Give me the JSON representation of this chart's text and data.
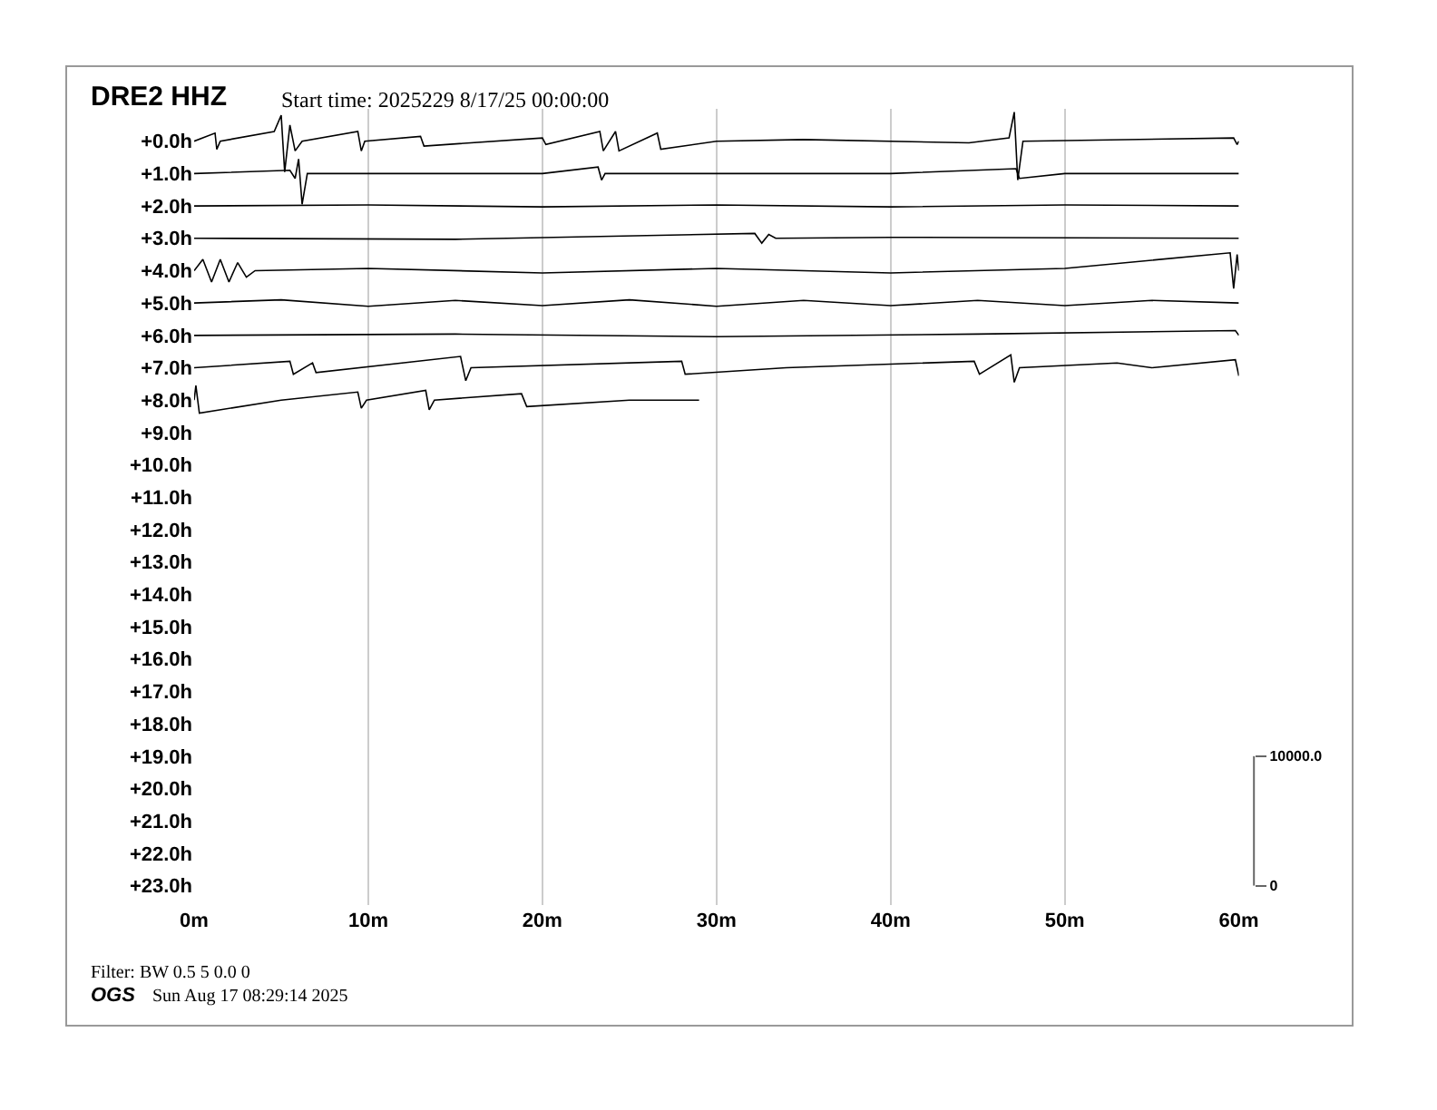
{
  "chart_data": {
    "type": "line",
    "title": "DRE2 HHZ",
    "subtitle": "Start time: 2025229  8/17/25 00:00:00",
    "annotations": [
      "Filter: BW 0.5 5 0.0 0",
      "OGS",
      "Sun Aug 17 08:29:14 2025"
    ],
    "xlim": [
      0,
      60
    ],
    "xticks": [
      {
        "value": 0,
        "label": "0m"
      },
      {
        "value": 10,
        "label": "10m"
      },
      {
        "value": 20,
        "label": "20m"
      },
      {
        "value": 30,
        "label": "30m"
      },
      {
        "value": 40,
        "label": "40m"
      },
      {
        "value": 50,
        "label": "50m"
      },
      {
        "value": 60,
        "label": "60m"
      }
    ],
    "ylim": [
      23.6,
      -1.0
    ],
    "yticks": [
      {
        "value": 0,
        "label": "+0.0h"
      },
      {
        "value": 1,
        "label": "+1.0h"
      },
      {
        "value": 2,
        "label": "+2.0h"
      },
      {
        "value": 3,
        "label": "+3.0h"
      },
      {
        "value": 4,
        "label": "+4.0h"
      },
      {
        "value": 5,
        "label": "+5.0h"
      },
      {
        "value": 6,
        "label": "+6.0h"
      },
      {
        "value": 7,
        "label": "+7.0h"
      },
      {
        "value": 8,
        "label": "+8.0h"
      },
      {
        "value": 9,
        "label": "+9.0h"
      },
      {
        "value": 10,
        "label": "+10.0h"
      },
      {
        "value": 11,
        "label": "+11.0h"
      },
      {
        "value": 12,
        "label": "+12.0h"
      },
      {
        "value": 13,
        "label": "+13.0h"
      },
      {
        "value": 14,
        "label": "+14.0h"
      },
      {
        "value": 15,
        "label": "+15.0h"
      },
      {
        "value": 16,
        "label": "+16.0h"
      },
      {
        "value": 17,
        "label": "+17.0h"
      },
      {
        "value": 18,
        "label": "+18.0h"
      },
      {
        "value": 19,
        "label": "+19.0h"
      },
      {
        "value": 20,
        "label": "+20.0h"
      },
      {
        "value": 21,
        "label": "+21.0h"
      },
      {
        "value": 22,
        "label": "+22.0h"
      },
      {
        "value": 23,
        "label": "+23.0h"
      }
    ],
    "y2lim": [
      -1500,
      60000
    ],
    "y2ticks": [
      0,
      {
        "value": 10000,
        "label": "10000.0"
      }
    ],
    "grid": "x",
    "series": [
      {
        "color": "#000000",
        "x": [
          0,
          1.2,
          1.3,
          1.5,
          4.6,
          5.0,
          5.2,
          5.5,
          5.8,
          6.2,
          9.4,
          9.6,
          9.8,
          13,
          13.2,
          20,
          20.2,
          23.3,
          23.5,
          24.2,
          24.4,
          26.6,
          26.8,
          30,
          35,
          44.5,
          46.8,
          47.1,
          47.3,
          47.6,
          59.7,
          59.9,
          60
        ],
        "values": [
          0,
          -0.25,
          0.25,
          0,
          -0.3,
          -0.8,
          0.95,
          -0.5,
          0.3,
          0,
          -0.3,
          0.3,
          0,
          -0.15,
          0.15,
          -0.1,
          0.1,
          -0.3,
          0.3,
          -0.3,
          0.3,
          -0.25,
          0.25,
          0,
          -0.05,
          0.05,
          -0.1,
          -0.9,
          1.2,
          0,
          -0.1,
          0.1,
          0
        ]
      },
      {
        "color": "#000000",
        "x": [
          0,
          5.5,
          5.8,
          6.0,
          6.2,
          6.5,
          10,
          20,
          23.2,
          23.4,
          23.6,
          30,
          40,
          47.2,
          47.4,
          50,
          60
        ],
        "values": [
          1,
          0.9,
          1.15,
          0.55,
          1.95,
          1,
          1,
          1,
          0.8,
          1.2,
          1,
          1,
          1,
          0.85,
          1.15,
          1,
          1
        ]
      },
      {
        "color": "#000000",
        "x": [
          0,
          10,
          20,
          30,
          40,
          50,
          60
        ],
        "values": [
          2,
          1.97,
          2.03,
          1.97,
          2.03,
          1.97,
          2
        ]
      },
      {
        "color": "#000000",
        "x": [
          0,
          15,
          32.2,
          32.6,
          33,
          33.4,
          40,
          60
        ],
        "values": [
          3,
          3.03,
          2.85,
          3.15,
          2.88,
          3,
          2.97,
          3
        ]
      },
      {
        "color": "#000000",
        "x": [
          0,
          0.5,
          1,
          1.5,
          2,
          2.5,
          3,
          3.5,
          10,
          20,
          30,
          40,
          50,
          59.5,
          59.7,
          59.9,
          60
        ],
        "values": [
          4,
          3.65,
          4.35,
          3.65,
          4.35,
          3.75,
          4.2,
          4,
          3.93,
          4.07,
          3.93,
          4.07,
          3.93,
          3.45,
          4.55,
          3.5,
          4
        ]
      },
      {
        "color": "#000000",
        "x": [
          0,
          5,
          10,
          15,
          20,
          25,
          30,
          35,
          40,
          45,
          50,
          55,
          60
        ],
        "values": [
          5,
          4.9,
          5.1,
          4.92,
          5.08,
          4.9,
          5.1,
          4.92,
          5.08,
          4.92,
          5.08,
          4.92,
          5
        ]
      },
      {
        "color": "#000000",
        "x": [
          0,
          15,
          30,
          45,
          59.8,
          60
        ],
        "values": [
          6,
          5.96,
          6.04,
          5.96,
          5.85,
          6
        ]
      },
      {
        "color": "#000000",
        "x": [
          0,
          5.5,
          5.7,
          6.8,
          7.0,
          15.3,
          15.6,
          15.9,
          28,
          28.2,
          34,
          44.8,
          45.1,
          46.9,
          47.1,
          47.4,
          53,
          55,
          59.8,
          60
        ],
        "values": [
          7,
          6.8,
          7.2,
          6.85,
          7.15,
          6.65,
          7.4,
          7,
          6.8,
          7.2,
          7,
          6.8,
          7.2,
          6.6,
          7.45,
          7,
          6.85,
          7,
          6.75,
          7.25
        ]
      },
      {
        "color": "#000000",
        "x": [
          0,
          0.1,
          0.3,
          5,
          9.4,
          9.6,
          9.9,
          13.3,
          13.5,
          13.8,
          18.8,
          19.1,
          25,
          29
        ],
        "values": [
          8,
          7.55,
          8.4,
          8,
          7.75,
          8.25,
          8,
          7.7,
          8.3,
          8,
          7.8,
          8.2,
          8,
          8
        ]
      }
    ]
  }
}
